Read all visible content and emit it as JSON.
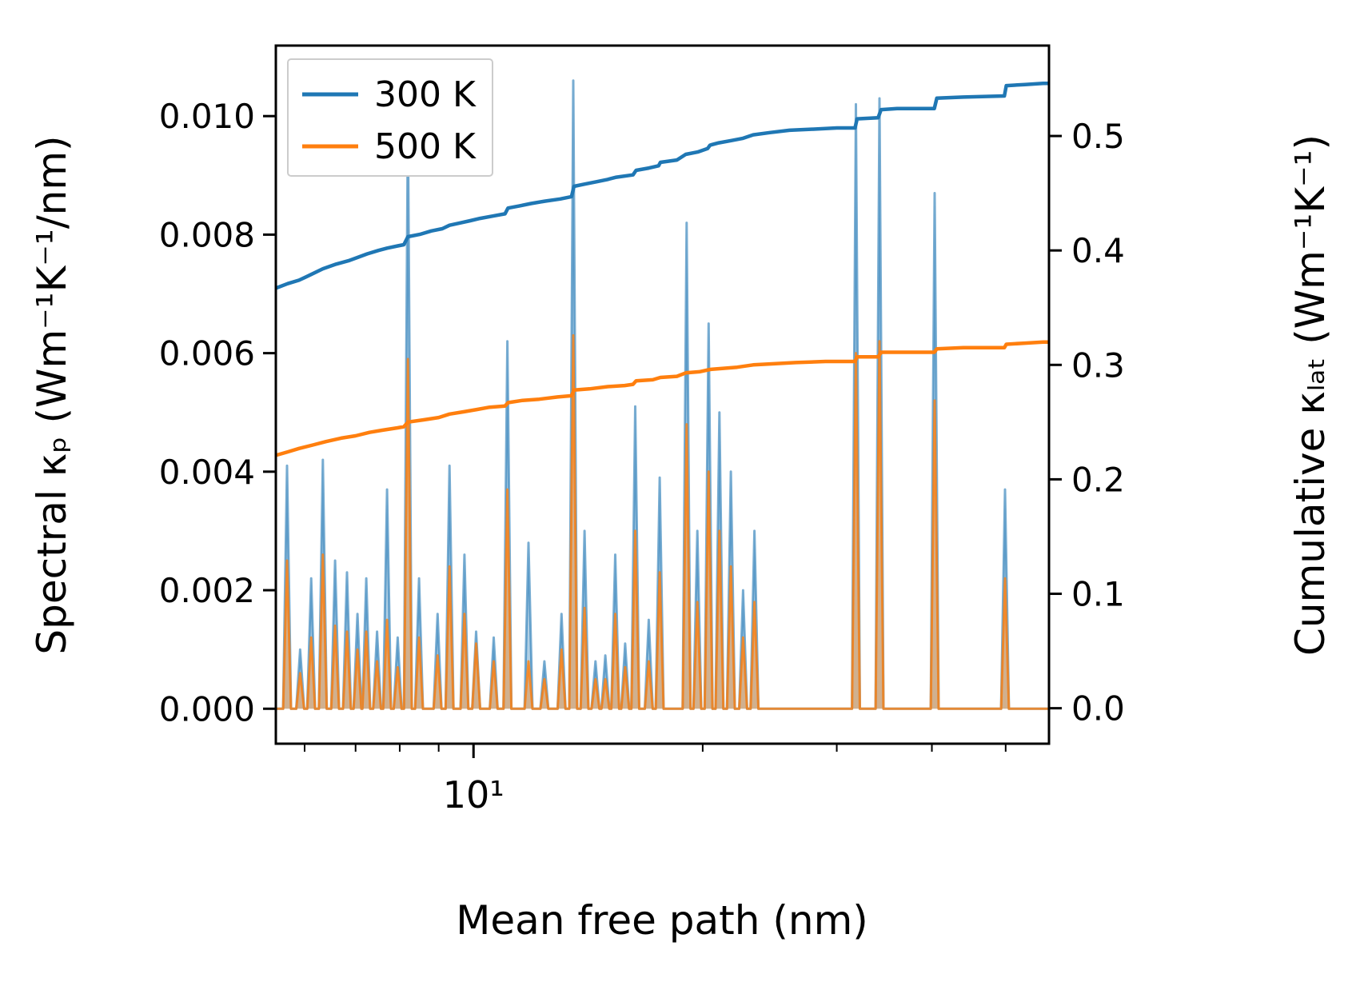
{
  "chart_data": {
    "type": "area",
    "title": "",
    "xlabel": "Mean free path (nm)",
    "ylabel_left": "Spectral κₚ (Wm⁻¹K⁻¹/nm)",
    "ylabel_right": "Cumulative κₗₐₜ (Wm⁻¹K⁻¹)",
    "x_scale": "log",
    "xlim": [
      5.5,
      57
    ],
    "left_ylim": [
      -0.00059,
      0.01119
    ],
    "right_ylim": [
      -0.031,
      0.579
    ],
    "grid": false,
    "legend_position": "upper left",
    "legend": [
      {
        "label": "300 K",
        "color": "#1f77b4"
      },
      {
        "label": "500 K",
        "color": "#ff7f0e"
      }
    ],
    "colors": {
      "blue": "#1f77b4",
      "orange": "#ff7f0e",
      "blue_soft": "rgba(31,119,180,0.6)",
      "orange_soft": "rgba(255,127,14,0.8)",
      "blue_fill": "rgba(31,119,180,0.35)",
      "orange_fill": "rgba(255,127,14,0.4)"
    },
    "left_ticks": [
      {
        "v": 0.0,
        "label": "0.000"
      },
      {
        "v": 0.002,
        "label": "0.002"
      },
      {
        "v": 0.004,
        "label": "0.004"
      },
      {
        "v": 0.006,
        "label": "0.006"
      },
      {
        "v": 0.008,
        "label": "0.008"
      },
      {
        "v": 0.01,
        "label": "0.010"
      }
    ],
    "right_ticks": [
      {
        "v": 0.0,
        "label": "0.0"
      },
      {
        "v": 0.1,
        "label": "0.1"
      },
      {
        "v": 0.2,
        "label": "0.2"
      },
      {
        "v": 0.3,
        "label": "0.3"
      },
      {
        "v": 0.4,
        "label": "0.4"
      },
      {
        "v": 0.5,
        "label": "0.5"
      }
    ],
    "x_major_ticks": [
      {
        "v": 10,
        "label": "10¹"
      }
    ],
    "x_minor_ticks": [
      6,
      7,
      8,
      9,
      20,
      30,
      40,
      50
    ],
    "series": {
      "spectral_spikes": {
        "description": "Spike positions: [mean_free_path_nm, spectral_kp_300K, spectral_kp_500K]",
        "points": [
          [
            5.69,
            0.0041,
            0.0025
          ],
          [
            5.92,
            0.001,
            0.0006
          ],
          [
            6.12,
            0.0022,
            0.0012
          ],
          [
            6.34,
            0.0042,
            0.0026
          ],
          [
            6.58,
            0.0025,
            0.0014
          ],
          [
            6.82,
            0.0023,
            0.0013
          ],
          [
            7.04,
            0.0016,
            0.001
          ],
          [
            7.23,
            0.0022,
            0.0013
          ],
          [
            7.47,
            0.0013,
            0.0008
          ],
          [
            7.7,
            0.0037,
            0.0015
          ],
          [
            7.95,
            0.0012,
            0.0007
          ],
          [
            8.2,
            0.01,
            0.0059
          ],
          [
            8.48,
            0.0022,
            0.0012
          ],
          [
            8.97,
            0.0016,
            0.0009
          ],
          [
            9.3,
            0.0041,
            0.0024
          ],
          [
            9.73,
            0.0026,
            0.0016
          ],
          [
            10.08,
            0.0013,
            0.0011
          ],
          [
            10.63,
            0.0012,
            0.0008
          ],
          [
            11.08,
            0.0062,
            0.0037
          ],
          [
            11.81,
            0.0028,
            0.0008
          ],
          [
            12.39,
            0.0008,
            0.0005
          ],
          [
            13.05,
            0.0016,
            0.001
          ],
          [
            13.52,
            0.0106,
            0.0063
          ],
          [
            13.99,
            0.003,
            0.0017
          ],
          [
            14.46,
            0.0008,
            0.0005
          ],
          [
            14.9,
            0.0009,
            0.0005
          ],
          [
            15.35,
            0.0026,
            0.0016
          ],
          [
            15.82,
            0.0011,
            0.0007
          ],
          [
            16.31,
            0.0051,
            0.003
          ],
          [
            16.99,
            0.0015,
            0.0008
          ],
          [
            17.56,
            0.0039,
            0.0023
          ],
          [
            19.05,
            0.0082,
            0.0048
          ],
          [
            19.68,
            0.003,
            0.0018
          ],
          [
            20.36,
            0.0065,
            0.004
          ],
          [
            21.04,
            0.005,
            0.003
          ],
          [
            21.78,
            0.004,
            0.0024
          ],
          [
            22.6,
            0.002,
            0.0012
          ],
          [
            23.39,
            0.003,
            0.0018
          ],
          [
            31.79,
            0.0102,
            0.006
          ],
          [
            34.14,
            0.0103,
            0.0062
          ],
          [
            40.34,
            0.0087,
            0.0052
          ],
          [
            49.9,
            0.0037,
            0.0022
          ]
        ]
      },
      "cumulative_300K": [
        [
          5.5,
          0.367
        ],
        [
          5.7,
          0.371
        ],
        [
          5.9,
          0.374
        ],
        [
          6.12,
          0.379
        ],
        [
          6.34,
          0.384
        ],
        [
          6.6,
          0.388
        ],
        [
          6.85,
          0.391
        ],
        [
          7.05,
          0.394
        ],
        [
          7.25,
          0.397
        ],
        [
          7.5,
          0.4
        ],
        [
          7.7,
          0.402
        ],
        [
          7.95,
          0.404
        ],
        [
          8.1,
          0.405
        ],
        [
          8.2,
          0.412
        ],
        [
          8.5,
          0.414
        ],
        [
          8.8,
          0.417
        ],
        [
          9.1,
          0.419
        ],
        [
          9.3,
          0.422
        ],
        [
          9.6,
          0.424
        ],
        [
          9.9,
          0.426
        ],
        [
          10.2,
          0.428
        ],
        [
          10.6,
          0.43
        ],
        [
          11.0,
          0.432
        ],
        [
          11.1,
          0.437
        ],
        [
          11.5,
          0.439
        ],
        [
          11.9,
          0.441
        ],
        [
          12.4,
          0.443
        ],
        [
          13.0,
          0.445
        ],
        [
          13.45,
          0.447
        ],
        [
          13.55,
          0.456
        ],
        [
          14.0,
          0.458
        ],
        [
          14.5,
          0.46
        ],
        [
          15.0,
          0.462
        ],
        [
          15.4,
          0.464
        ],
        [
          16.2,
          0.466
        ],
        [
          16.35,
          0.47
        ],
        [
          17.0,
          0.472
        ],
        [
          17.5,
          0.474
        ],
        [
          17.6,
          0.477
        ],
        [
          18.5,
          0.479
        ],
        [
          19.0,
          0.484
        ],
        [
          19.7,
          0.486
        ],
        [
          20.3,
          0.489
        ],
        [
          20.45,
          0.492
        ],
        [
          21.0,
          0.494
        ],
        [
          21.8,
          0.496
        ],
        [
          22.6,
          0.498
        ],
        [
          23.3,
          0.501
        ],
        [
          24.5,
          0.503
        ],
        [
          26.0,
          0.505
        ],
        [
          28.0,
          0.506
        ],
        [
          30.0,
          0.507
        ],
        [
          31.7,
          0.507
        ],
        [
          31.9,
          0.515
        ],
        [
          34.0,
          0.516
        ],
        [
          34.3,
          0.523
        ],
        [
          36.0,
          0.524
        ],
        [
          40.3,
          0.524
        ],
        [
          40.6,
          0.533
        ],
        [
          44.0,
          0.534
        ],
        [
          49.8,
          0.535
        ],
        [
          50.1,
          0.544
        ],
        [
          53.0,
          0.545
        ],
        [
          56.0,
          0.546
        ],
        [
          57.0,
          0.546
        ]
      ],
      "cumulative_500K": [
        [
          5.5,
          0.221
        ],
        [
          5.7,
          0.224
        ],
        [
          5.9,
          0.227
        ],
        [
          6.15,
          0.23
        ],
        [
          6.4,
          0.233
        ],
        [
          6.7,
          0.236
        ],
        [
          7.0,
          0.238
        ],
        [
          7.3,
          0.241
        ],
        [
          7.6,
          0.243
        ],
        [
          7.95,
          0.245
        ],
        [
          8.1,
          0.246
        ],
        [
          8.2,
          0.25
        ],
        [
          8.6,
          0.252
        ],
        [
          9.0,
          0.254
        ],
        [
          9.3,
          0.257
        ],
        [
          9.7,
          0.259
        ],
        [
          10.1,
          0.261
        ],
        [
          10.5,
          0.263
        ],
        [
          11.0,
          0.264
        ],
        [
          11.1,
          0.267
        ],
        [
          11.6,
          0.269
        ],
        [
          12.2,
          0.27
        ],
        [
          12.9,
          0.272
        ],
        [
          13.45,
          0.273
        ],
        [
          13.55,
          0.278
        ],
        [
          14.2,
          0.279
        ],
        [
          15.0,
          0.281
        ],
        [
          15.8,
          0.282
        ],
        [
          16.2,
          0.283
        ],
        [
          16.35,
          0.286
        ],
        [
          17.2,
          0.287
        ],
        [
          17.6,
          0.289
        ],
        [
          18.5,
          0.29
        ],
        [
          19.0,
          0.293
        ],
        [
          19.8,
          0.294
        ],
        [
          20.45,
          0.296
        ],
        [
          21.3,
          0.297
        ],
        [
          22.2,
          0.298
        ],
        [
          23.3,
          0.3
        ],
        [
          24.8,
          0.301
        ],
        [
          26.5,
          0.302
        ],
        [
          29.0,
          0.303
        ],
        [
          31.7,
          0.303
        ],
        [
          31.9,
          0.307
        ],
        [
          34.0,
          0.307
        ],
        [
          34.3,
          0.311
        ],
        [
          36.0,
          0.311
        ],
        [
          40.3,
          0.311
        ],
        [
          40.6,
          0.314
        ],
        [
          44.0,
          0.315
        ],
        [
          49.8,
          0.315
        ],
        [
          50.1,
          0.318
        ],
        [
          53.0,
          0.319
        ],
        [
          56.0,
          0.32
        ],
        [
          57.0,
          0.32
        ]
      ]
    }
  }
}
